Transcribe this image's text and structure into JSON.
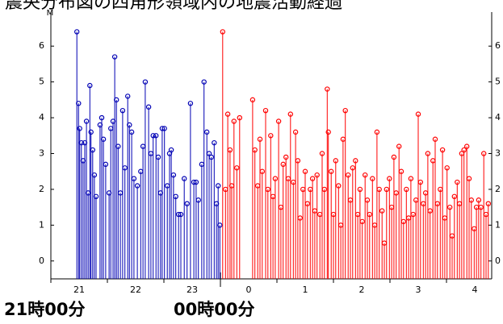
{
  "chart_data": {
    "type": "stem",
    "title": "震央分布図の四角形領域内の地震活動経過",
    "y_label": "M",
    "annotations": [
      "21時00分",
      "00時00分"
    ],
    "annotation_x": [
      21,
      24
    ],
    "xlim": [
      21,
      28.8
    ],
    "xticks": [
      {
        "value": 21,
        "label": "21"
      },
      {
        "value": 22,
        "label": "22"
      },
      {
        "value": 23,
        "label": "23"
      },
      {
        "value": 24,
        "label": "0"
      },
      {
        "value": 25,
        "label": "1"
      },
      {
        "value": 26,
        "label": "2"
      },
      {
        "value": 27,
        "label": "3"
      },
      {
        "value": 28,
        "label": "4"
      }
    ],
    "ylim": [
      -0.5,
      6.95
    ],
    "yticks": [
      0,
      1,
      2,
      3,
      4,
      5,
      6
    ],
    "series": [
      {
        "color": "#0000b4",
        "x": [
          21.46,
          21.49,
          21.51,
          21.54,
          21.57,
          21.6,
          21.63,
          21.66,
          21.69,
          21.71,
          21.74,
          21.77,
          21.8,
          21.87,
          21.9,
          21.93,
          21.97,
          22.03,
          22.06,
          22.1,
          22.13,
          22.16,
          22.19,
          22.23,
          22.27,
          22.31,
          22.36,
          22.39,
          22.43,
          22.47,
          22.53,
          22.59,
          22.63,
          22.67,
          22.73,
          22.77,
          22.81,
          22.86,
          22.9,
          22.94,
          22.97,
          23.01,
          23.06,
          23.1,
          23.13,
          23.17,
          23.21,
          23.26,
          23.3,
          23.36,
          23.41,
          23.47,
          23.53,
          23.57,
          23.61,
          23.67,
          23.71,
          23.76,
          23.8,
          23.84,
          23.89,
          23.93,
          23.96,
          23.99
        ],
        "values": [
          6.4,
          4.4,
          3.7,
          3.3,
          2.8,
          3.3,
          3.9,
          1.9,
          4.9,
          3.6,
          3.1,
          2.4,
          1.8,
          3.8,
          4.0,
          3.4,
          2.7,
          1.9,
          3.7,
          3.9,
          5.7,
          4.5,
          3.2,
          1.9,
          4.2,
          2.6,
          4.6,
          3.8,
          3.6,
          2.3,
          2.1,
          2.5,
          3.2,
          5.0,
          4.3,
          3.0,
          3.5,
          3.5,
          2.9,
          1.9,
          3.7,
          3.7,
          2.1,
          3.0,
          3.1,
          2.4,
          1.8,
          1.3,
          1.3,
          2.3,
          1.6,
          4.4,
          2.2,
          2.2,
          1.7,
          2.7,
          5.0,
          3.6,
          3.0,
          2.9,
          3.3,
          1.6,
          2.1,
          1.0
        ]
      },
      {
        "color": "#ff0000",
        "x": [
          24.04,
          24.09,
          24.13,
          24.17,
          24.2,
          24.24,
          24.29,
          24.34,
          24.57,
          24.61,
          24.66,
          24.7,
          24.74,
          24.8,
          24.84,
          24.89,
          24.93,
          24.97,
          25.03,
          25.07,
          25.11,
          25.16,
          25.2,
          25.24,
          25.29,
          25.33,
          25.37,
          25.41,
          25.46,
          25.5,
          25.54,
          25.59,
          25.63,
          25.67,
          25.71,
          25.76,
          25.8,
          25.84,
          25.89,
          25.91,
          25.96,
          26.0,
          26.04,
          26.09,
          26.13,
          26.17,
          26.21,
          26.26,
          26.3,
          26.34,
          26.39,
          26.43,
          26.47,
          26.51,
          26.56,
          26.6,
          26.64,
          26.69,
          26.73,
          26.77,
          26.81,
          26.86,
          26.9,
          26.94,
          26.99,
          27.03,
          27.07,
          27.11,
          27.16,
          27.2,
          27.24,
          27.29,
          27.33,
          27.37,
          27.41,
          27.46,
          27.5,
          27.54,
          27.59,
          27.63,
          27.67,
          27.71,
          27.76,
          27.8,
          27.84,
          27.89,
          27.93,
          27.97,
          28.01,
          28.06,
          28.1,
          28.14,
          28.19,
          28.23,
          28.27,
          28.31,
          28.36,
          28.4,
          28.44,
          28.49,
          28.53,
          28.57,
          28.61,
          28.66,
          28.7,
          28.74
        ],
        "values": [
          6.4,
          2.0,
          4.1,
          3.1,
          2.1,
          3.9,
          2.6,
          4.0,
          4.5,
          3.1,
          2.1,
          3.4,
          2.5,
          4.2,
          2.0,
          3.5,
          1.8,
          2.3,
          3.9,
          1.5,
          2.7,
          2.9,
          2.3,
          4.1,
          2.2,
          3.6,
          2.8,
          1.2,
          2.0,
          2.5,
          1.6,
          2.0,
          2.3,
          1.4,
          2.4,
          1.3,
          3.0,
          2.0,
          4.8,
          3.6,
          2.5,
          1.3,
          2.8,
          2.1,
          1.0,
          3.4,
          4.2,
          2.4,
          1.7,
          2.6,
          2.8,
          1.3,
          2.0,
          1.1,
          2.4,
          1.7,
          1.3,
          2.3,
          1.0,
          3.6,
          2.0,
          1.4,
          0.5,
          2.0,
          2.3,
          1.5,
          2.9,
          1.9,
          3.2,
          2.5,
          1.1,
          2.0,
          1.2,
          2.3,
          1.3,
          1.7,
          4.1,
          2.2,
          1.6,
          1.9,
          3.0,
          1.4,
          2.8,
          3.4,
          1.6,
          2.0,
          3.1,
          1.2,
          2.6,
          1.5,
          0.7,
          1.8,
          2.2,
          1.6,
          3.0,
          3.1,
          3.2,
          2.3,
          1.7,
          0.9,
          1.5,
          1.7,
          1.5,
          3.0,
          1.3,
          1.6
        ]
      }
    ]
  }
}
